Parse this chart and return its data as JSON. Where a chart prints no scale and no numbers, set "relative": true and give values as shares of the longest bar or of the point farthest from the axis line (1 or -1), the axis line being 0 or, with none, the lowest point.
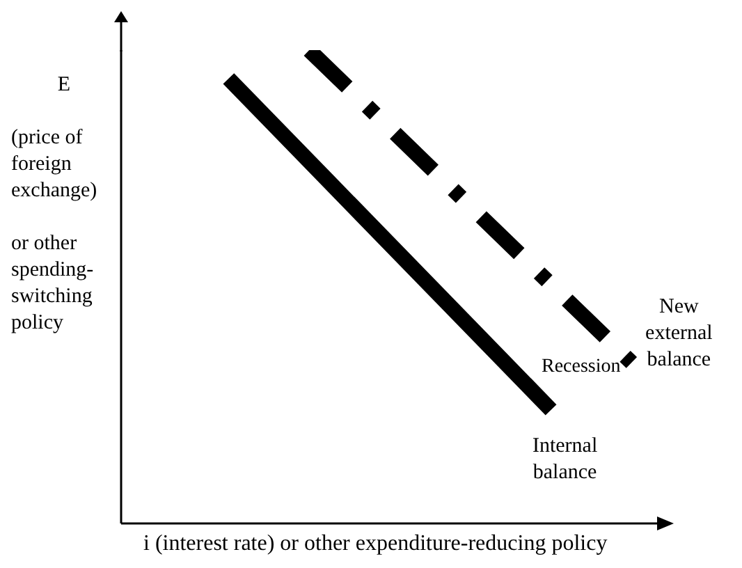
{
  "chart_data": {
    "type": "line",
    "relative": true,
    "ylabel": "E\n(price of foreign exchange)\n\nor other spending-switching policy",
    "xlabel": "i (interest rate) or other expenditure-reducing policy",
    "categories": [
      null,
      null,
      null,
      null,
      null,
      null,
      null,
      null,
      null,
      null,
      null,
      null,
      null,
      null,
      null,
      null,
      null,
      null,
      null,
      null,
      null
    ],
    "series": [
      {
        "name": "Internal balance",
        "color": "#000000",
        "line_style": "solid",
        "values": [
          null,
          null,
          null,
          null,
          0.94,
          null,
          null,
          null,
          null,
          null,
          null,
          null,
          null,
          null,
          null,
          null,
          0.24,
          null,
          null,
          null,
          null
        ]
      },
      {
        "name": "New external balance",
        "color": "#000000",
        "line_style": "dashed",
        "values": [
          null,
          null,
          null,
          null,
          null,
          null,
          null,
          1,
          null,
          null,
          null,
          null,
          null,
          null,
          null,
          null,
          null,
          null,
          null,
          0.34,
          null
        ]
      }
    ],
    "annotations": [
      "Recession"
    ],
    "marker": "none",
    "legend": false,
    "grid": false
  }
}
